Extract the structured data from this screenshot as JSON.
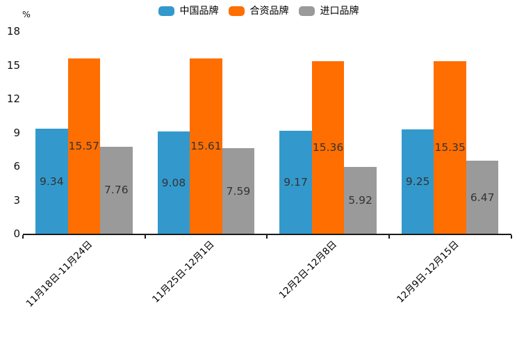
{
  "chart_data": {
    "type": "bar",
    "title": "",
    "unit_label": "%",
    "categories": [
      "11月18日-11月24日",
      "11月25日-12月1日",
      "12月2日-12月8日",
      "12月9日-12月15日"
    ],
    "series": [
      {
        "name": "中国品牌",
        "color": "#3399CC",
        "values": [
          9.34,
          9.08,
          9.17,
          9.25
        ]
      },
      {
        "name": "合资品牌",
        "color": "#FF6E00",
        "values": [
          15.57,
          15.61,
          15.36,
          15.35
        ]
      },
      {
        "name": "进口品牌",
        "color": "#9A9A9A",
        "values": [
          7.76,
          7.59,
          5.92,
          6.47
        ]
      }
    ],
    "value_labels_shown": true,
    "ylim": [
      0,
      18
    ],
    "yticks": [
      0,
      3,
      6,
      9,
      12,
      15,
      18
    ],
    "grid": false,
    "legend_position": "top",
    "xlabel": "",
    "ylabel": ""
  },
  "colors": {
    "background": "#ffffff",
    "axis": "#1a1a1a",
    "value_label_text": "#333333"
  }
}
